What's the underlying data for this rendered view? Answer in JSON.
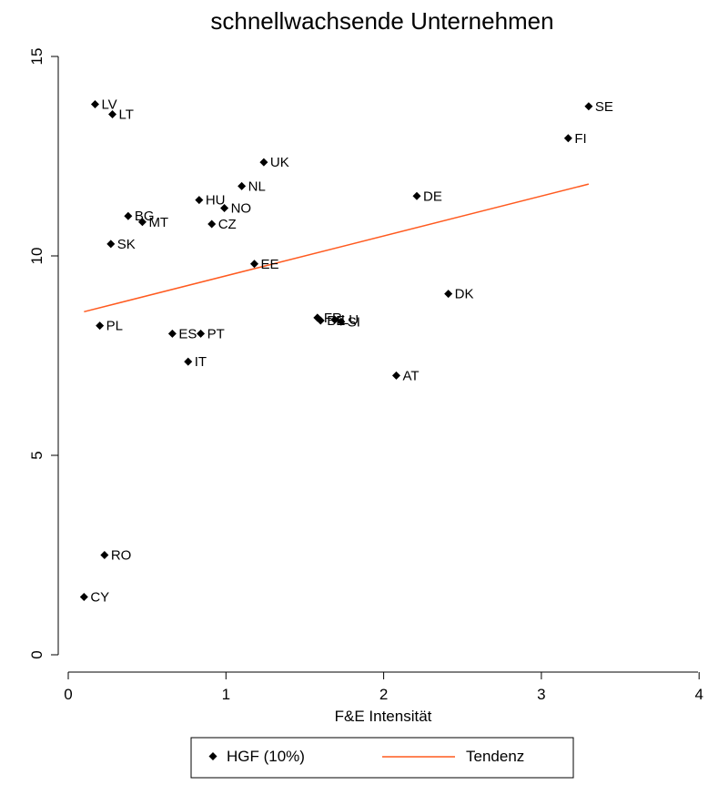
{
  "chart_data": {
    "type": "scatter",
    "title": "schnellwachsende Unternehmen",
    "xlabel": "F&E Intensität",
    "ylabel": "",
    "xlim": [
      0,
      4
    ],
    "ylim": [
      0,
      15
    ],
    "xticks": [
      0,
      1,
      2,
      3,
      4
    ],
    "yticks": [
      0,
      5,
      10,
      15
    ],
    "grid": false,
    "legend_position": "bottom",
    "series": [
      {
        "name": "HGF (10%)",
        "color": "#000000",
        "marker": "diamond",
        "points": [
          {
            "label": "LV",
            "x": 0.17,
            "y": 13.8
          },
          {
            "label": "LT",
            "x": 0.28,
            "y": 13.55
          },
          {
            "label": "SE",
            "x": 3.3,
            "y": 13.75
          },
          {
            "label": "FI",
            "x": 3.17,
            "y": 12.95
          },
          {
            "label": "UK",
            "x": 1.24,
            "y": 12.35
          },
          {
            "label": "NL",
            "x": 1.1,
            "y": 11.75
          },
          {
            "label": "DE",
            "x": 2.21,
            "y": 11.5
          },
          {
            "label": "HU",
            "x": 0.83,
            "y": 11.4
          },
          {
            "label": "NO",
            "x": 0.99,
            "y": 11.2
          },
          {
            "label": "BG",
            "x": 0.38,
            "y": 11.0
          },
          {
            "label": "MT",
            "x": 0.47,
            "y": 10.85
          },
          {
            "label": "CZ",
            "x": 0.91,
            "y": 10.8
          },
          {
            "label": "SK",
            "x": 0.27,
            "y": 10.3
          },
          {
            "label": "EE",
            "x": 1.18,
            "y": 9.8
          },
          {
            "label": "DK",
            "x": 2.41,
            "y": 9.05
          },
          {
            "label": "FR",
            "x": 1.58,
            "y": 8.45
          },
          {
            "label": "BE",
            "x": 1.6,
            "y": 8.38
          },
          {
            "label": "LU",
            "x": 1.69,
            "y": 8.4
          },
          {
            "label": "SI",
            "x": 1.73,
            "y": 8.35
          },
          {
            "label": "PL",
            "x": 0.2,
            "y": 8.25
          },
          {
            "label": "ES",
            "x": 0.66,
            "y": 8.05
          },
          {
            "label": "PT",
            "x": 0.84,
            "y": 8.05
          },
          {
            "label": "IT",
            "x": 0.76,
            "y": 7.35
          },
          {
            "label": "AT",
            "x": 2.08,
            "y": 7.0
          },
          {
            "label": "RO",
            "x": 0.23,
            "y": 2.5
          },
          {
            "label": "CY",
            "x": 0.1,
            "y": 1.45
          }
        ]
      },
      {
        "name": "Tendenz",
        "color": "#ff5a1f",
        "type": "line",
        "points": [
          {
            "x": 0.1,
            "y": 8.6
          },
          {
            "x": 3.3,
            "y": 11.8
          }
        ]
      }
    ]
  }
}
